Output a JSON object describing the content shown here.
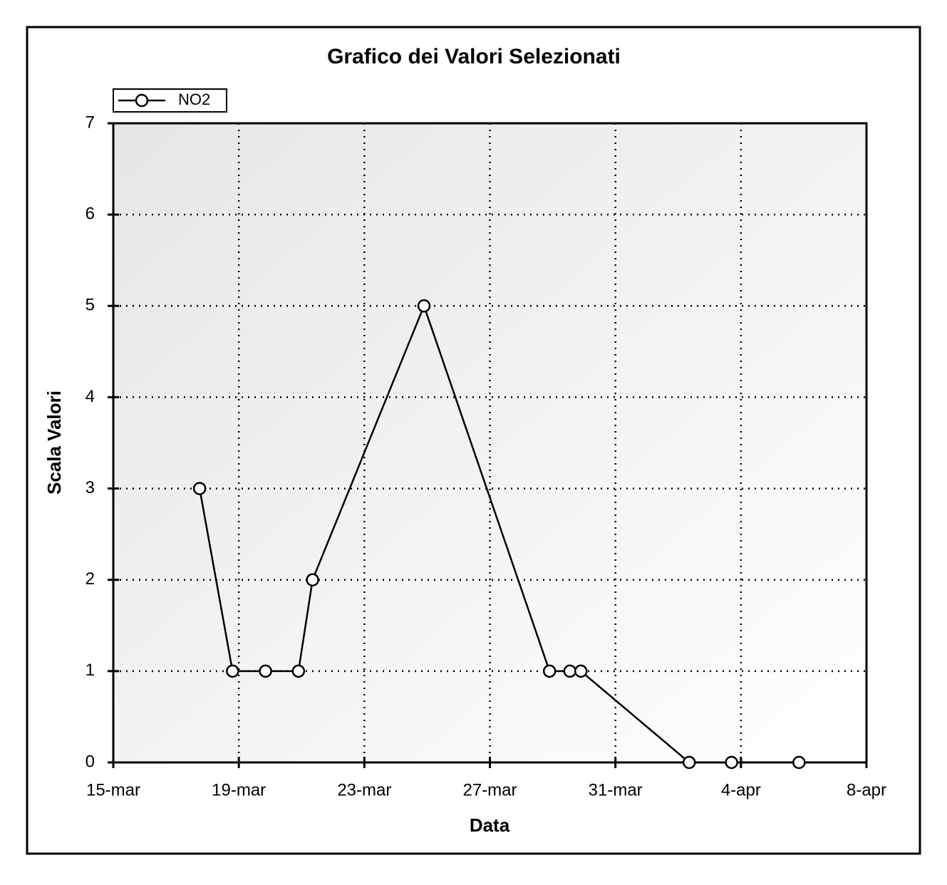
{
  "chart_data": {
    "type": "line",
    "title": "Grafico dei Valori Selezionati",
    "x_label": "Data",
    "y_label": "Scala Valori",
    "series": [
      {
        "name": "NO2",
        "color": "#000000",
        "x": [
          17.75,
          18.8,
          19.85,
          20.9,
          21.35,
          24.9,
          28.9,
          29.55,
          29.9,
          33.35,
          34.7,
          36.85
        ],
        "values": [
          3,
          1,
          1,
          1,
          2,
          5,
          1,
          1,
          1,
          0,
          0,
          0
        ]
      }
    ],
    "xlim": [
      15,
      39
    ],
    "xticks": [
      {
        "value": 15,
        "label": "15-mar"
      },
      {
        "value": 19,
        "label": "19-mar"
      },
      {
        "value": 23,
        "label": "23-mar"
      },
      {
        "value": 27,
        "label": "27-mar"
      },
      {
        "value": 31,
        "label": "31-mar"
      },
      {
        "value": 35,
        "label": "4-apr"
      },
      {
        "value": 39,
        "label": "8-apr"
      }
    ],
    "ylim": [
      0,
      7
    ],
    "yticks": [
      0,
      1,
      2,
      3,
      4,
      5,
      6,
      7
    ],
    "grid": true,
    "legend": "top-left"
  }
}
